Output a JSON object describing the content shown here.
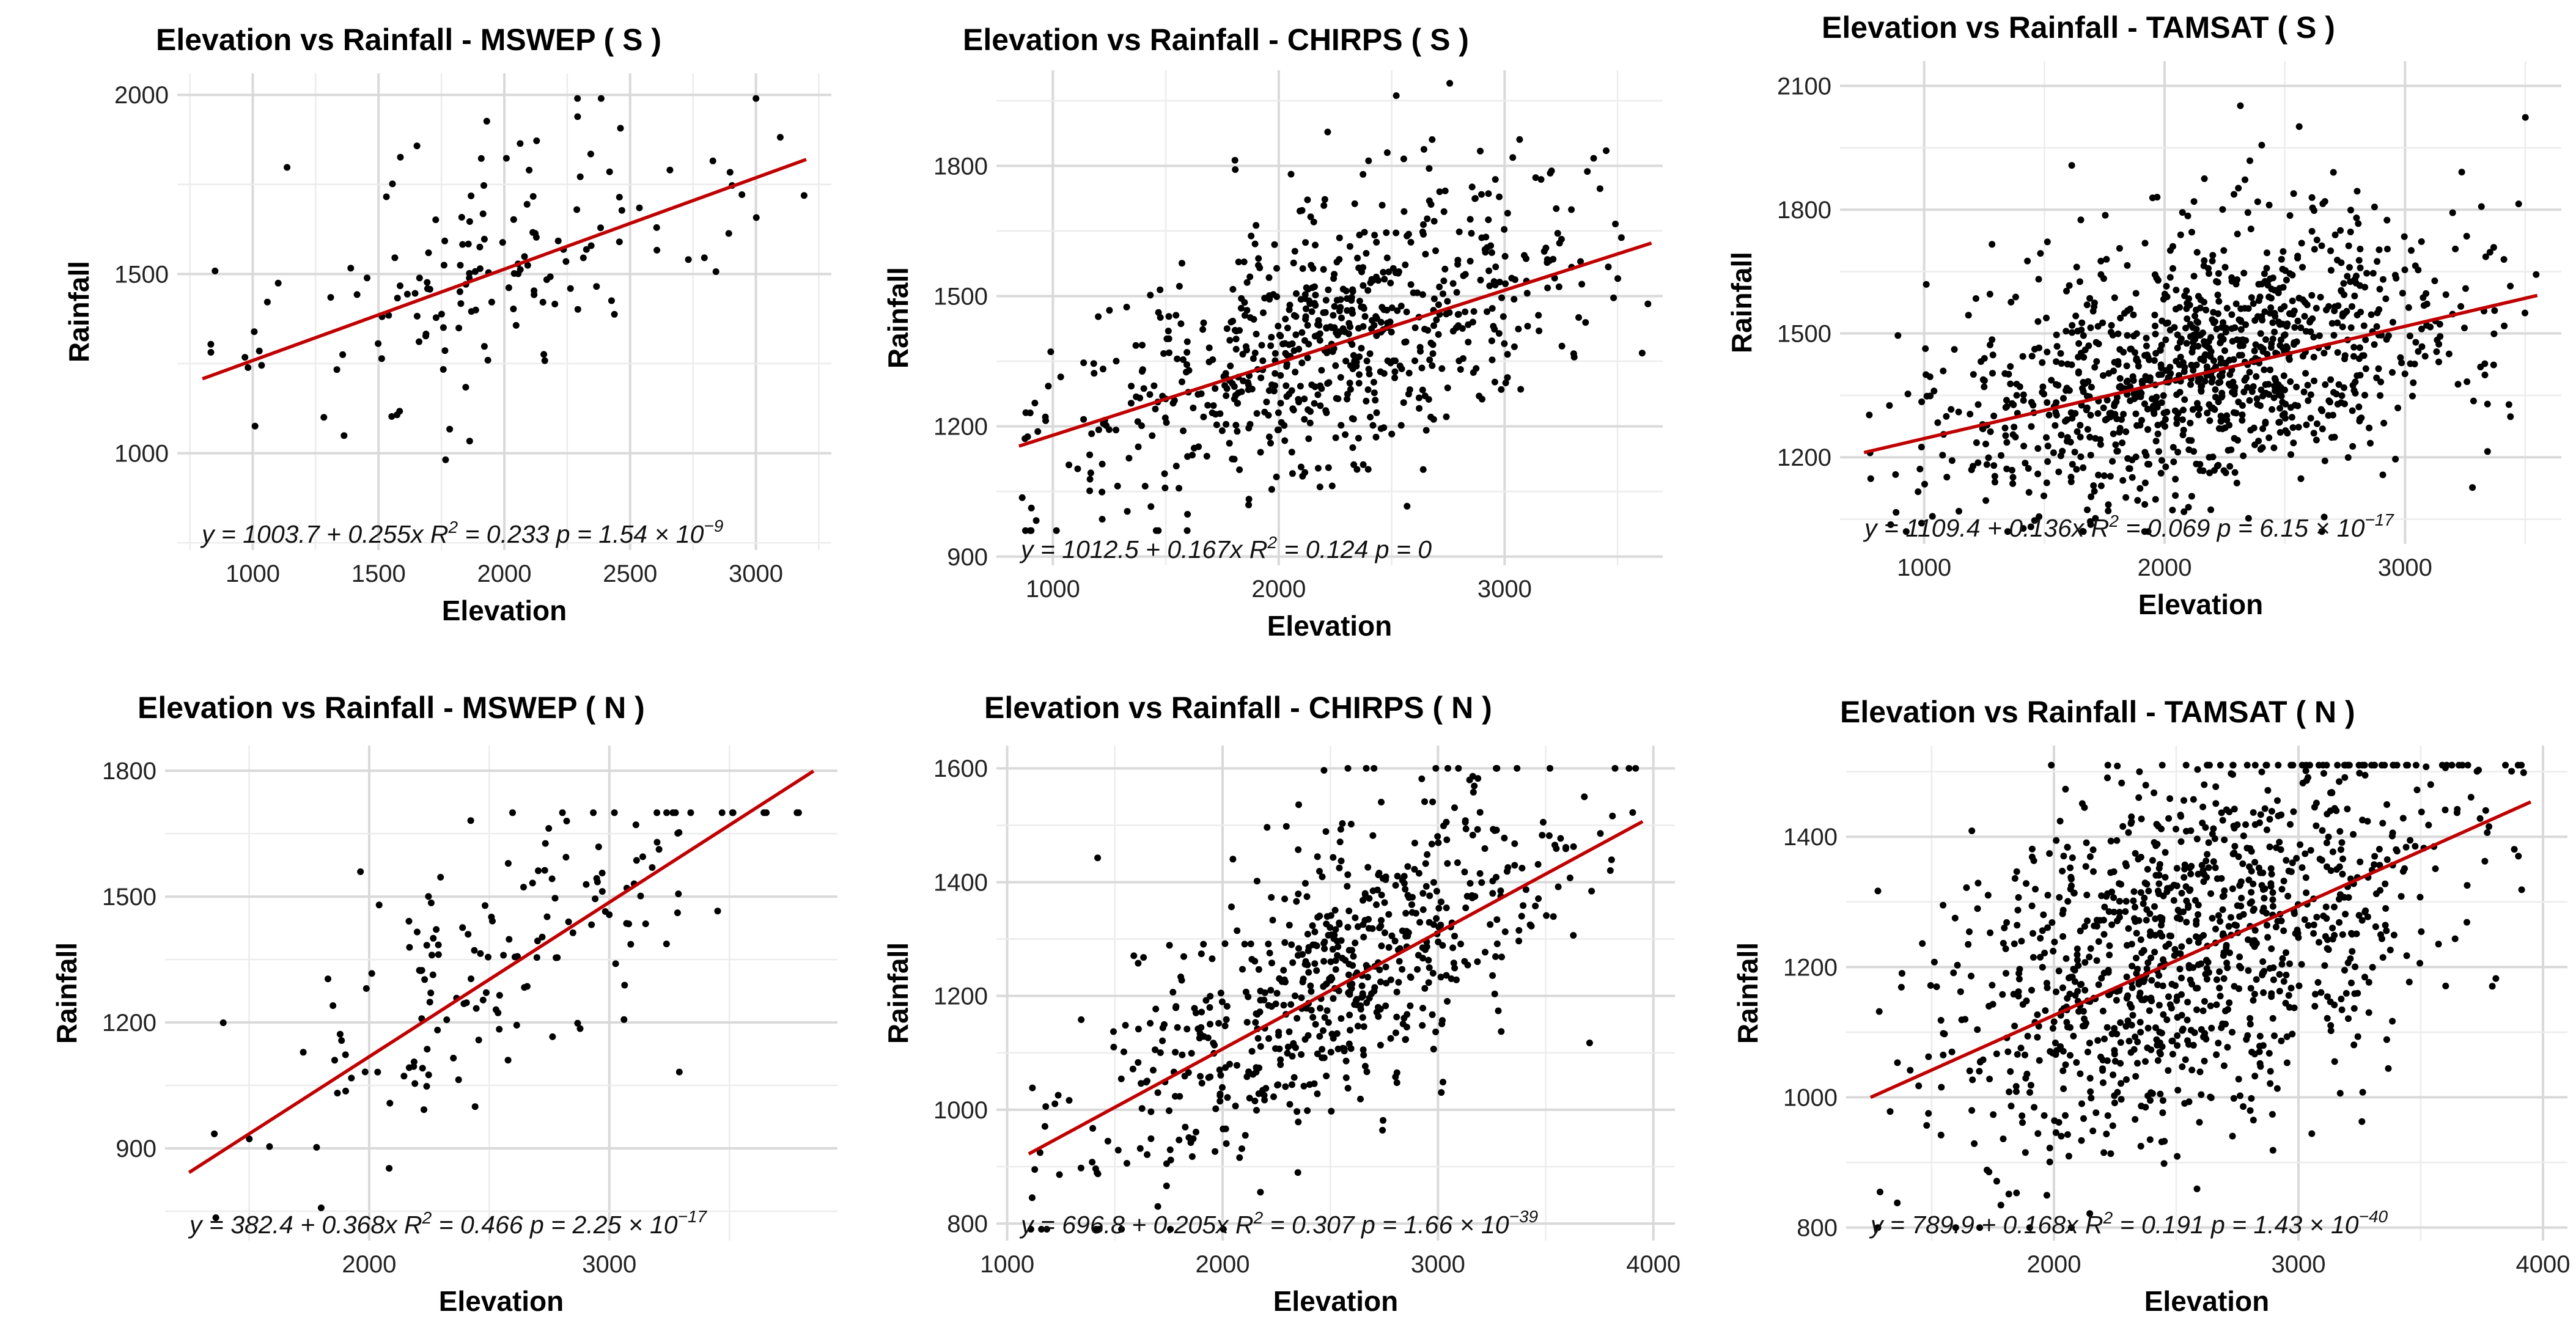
{
  "chart_data": [
    {
      "type": "scatter",
      "title": "Elevation vs Rainfall - MSWEP ( S )",
      "xlabel": "Elevation",
      "ylabel": "Rainfall",
      "xlim": [
        700,
        3300
      ],
      "ylim": [
        730,
        2060
      ],
      "xticks": [
        1000,
        1500,
        2000,
        2500,
        3000
      ],
      "yticks": [
        1000,
        1500,
        2000
      ],
      "fit": {
        "intercept": 1003.7,
        "slope": 0.255,
        "x_range": [
          800,
          3200
        ]
      },
      "equation": {
        "prefix": "y = 1003.7 + 0.255x",
        "r2": "0.233",
        "p_mantissa": "1.54",
        "p_exp": "−9"
      },
      "n_points": 150,
      "seed": 11,
      "x_spread": [
        780,
        3230
      ],
      "y_clip": [
        760,
        1990
      ],
      "noise": 190
    },
    {
      "type": "scatter",
      "title": "Elevation vs Rainfall - CHIRPS ( S )",
      "xlabel": "Elevation",
      "ylabel": "Rainfall",
      "xlim": [
        750,
        3700
      ],
      "ylim": [
        880,
        2020
      ],
      "xticks": [
        1000,
        2000,
        3000
      ],
      "yticks": [
        900,
        1200,
        1500,
        1800
      ],
      "fit": {
        "intercept": 1012.5,
        "slope": 0.167,
        "x_range": [
          850,
          3650
        ]
      },
      "equation": {
        "prefix": "y = 1012.5 + 0.167x",
        "r2": "0.124",
        "p_mantissa": "",
        "p_exp": "",
        "p_text": "0"
      },
      "n_points": 700,
      "seed": 23,
      "x_spread": [
        850,
        3650
      ],
      "y_clip": [
        960,
        1990
      ],
      "noise": 140
    },
    {
      "type": "scatter",
      "title": "Elevation vs Rainfall - TAMSAT ( S )",
      "xlabel": "Elevation",
      "ylabel": "Rainfall",
      "xlim": [
        650,
        3650
      ],
      "ylim": [
        990,
        2160
      ],
      "xticks": [
        1000,
        2000,
        3000
      ],
      "yticks": [
        1200,
        1500,
        1800,
        2100
      ],
      "fit": {
        "intercept": 1109.4,
        "slope": 0.136,
        "x_range": [
          750,
          3550
        ]
      },
      "equation": {
        "prefix": "y = 1109.4 + 0.136x",
        "r2": "0.069",
        "p_mantissa": "6.15",
        "p_exp": "−17"
      },
      "n_points": 1100,
      "seed": 37,
      "x_spread": [
        750,
        3550
      ],
      "y_clip": [
        1020,
        2120
      ],
      "noise": 160
    },
    {
      "type": "scatter",
      "title": "Elevation vs Rainfall - MSWEP ( N )",
      "xlabel": "Elevation",
      "ylabel": "Rainfall",
      "xlim": [
        1150,
        3950
      ],
      "ylim": [
        680,
        1860
      ],
      "xticks": [
        2000,
        3000
      ],
      "yticks": [
        900,
        1200,
        1500,
        1800
      ],
      "fit": {
        "intercept": 382.4,
        "slope": 0.368,
        "x_range": [
          1250,
          3850
        ]
      },
      "equation": {
        "prefix": "y = 382.4 + 0.368x",
        "r2": "0.466",
        "p_mantissa": "2.25",
        "p_exp": "−17"
      },
      "n_points": 160,
      "seed": 53,
      "x_spread": [
        1250,
        3900
      ],
      "y_clip": [
        700,
        1700
      ],
      "noise": 150
    },
    {
      "type": "scatter",
      "title": "Elevation vs Rainfall - CHIRPS ( N )",
      "xlabel": "Elevation",
      "ylabel": "Rainfall",
      "xlim": [
        950,
        4100
      ],
      "ylim": [
        770,
        1640
      ],
      "xticks": [
        1000,
        2000,
        3000,
        4000
      ],
      "yticks": [
        800,
        1000,
        1200,
        1400,
        1600
      ],
      "fit": {
        "intercept": 696.8,
        "slope": 0.205,
        "x_range": [
          1100,
          3950
        ]
      },
      "equation": {
        "prefix": "y = 696.8 + 0.205x",
        "r2": "0.307",
        "p_mantissa": "1.66",
        "p_exp": "−39"
      },
      "n_points": 650,
      "seed": 71,
      "x_spread": [
        1100,
        3950
      ],
      "y_clip": [
        790,
        1600
      ],
      "noise": 120
    },
    {
      "type": "scatter",
      "title": "Elevation vs Rainfall - TAMSAT ( N )",
      "xlabel": "Elevation",
      "ylabel": "Rainfall",
      "xlim": [
        1150,
        4100
      ],
      "ylim": [
        780,
        1540
      ],
      "xticks": [
        2000,
        3000,
        4000
      ],
      "yticks": [
        800,
        1000,
        1200,
        1400
      ],
      "fit": {
        "intercept": 789.9,
        "slope": 0.168,
        "x_range": [
          1250,
          3950
        ]
      },
      "equation": {
        "prefix": "y = 789.9 + 0.168x",
        "r2": "0.191",
        "p_mantissa": "1.43",
        "p_exp": "−40"
      },
      "n_points": 1100,
      "seed": 89,
      "x_spread": [
        1250,
        3950
      ],
      "y_clip": [
        800,
        1510
      ],
      "noise": 140
    }
  ],
  "colors": {
    "points": "#000000",
    "fit_line": "#c00000",
    "grid": "#d9d9d9"
  }
}
